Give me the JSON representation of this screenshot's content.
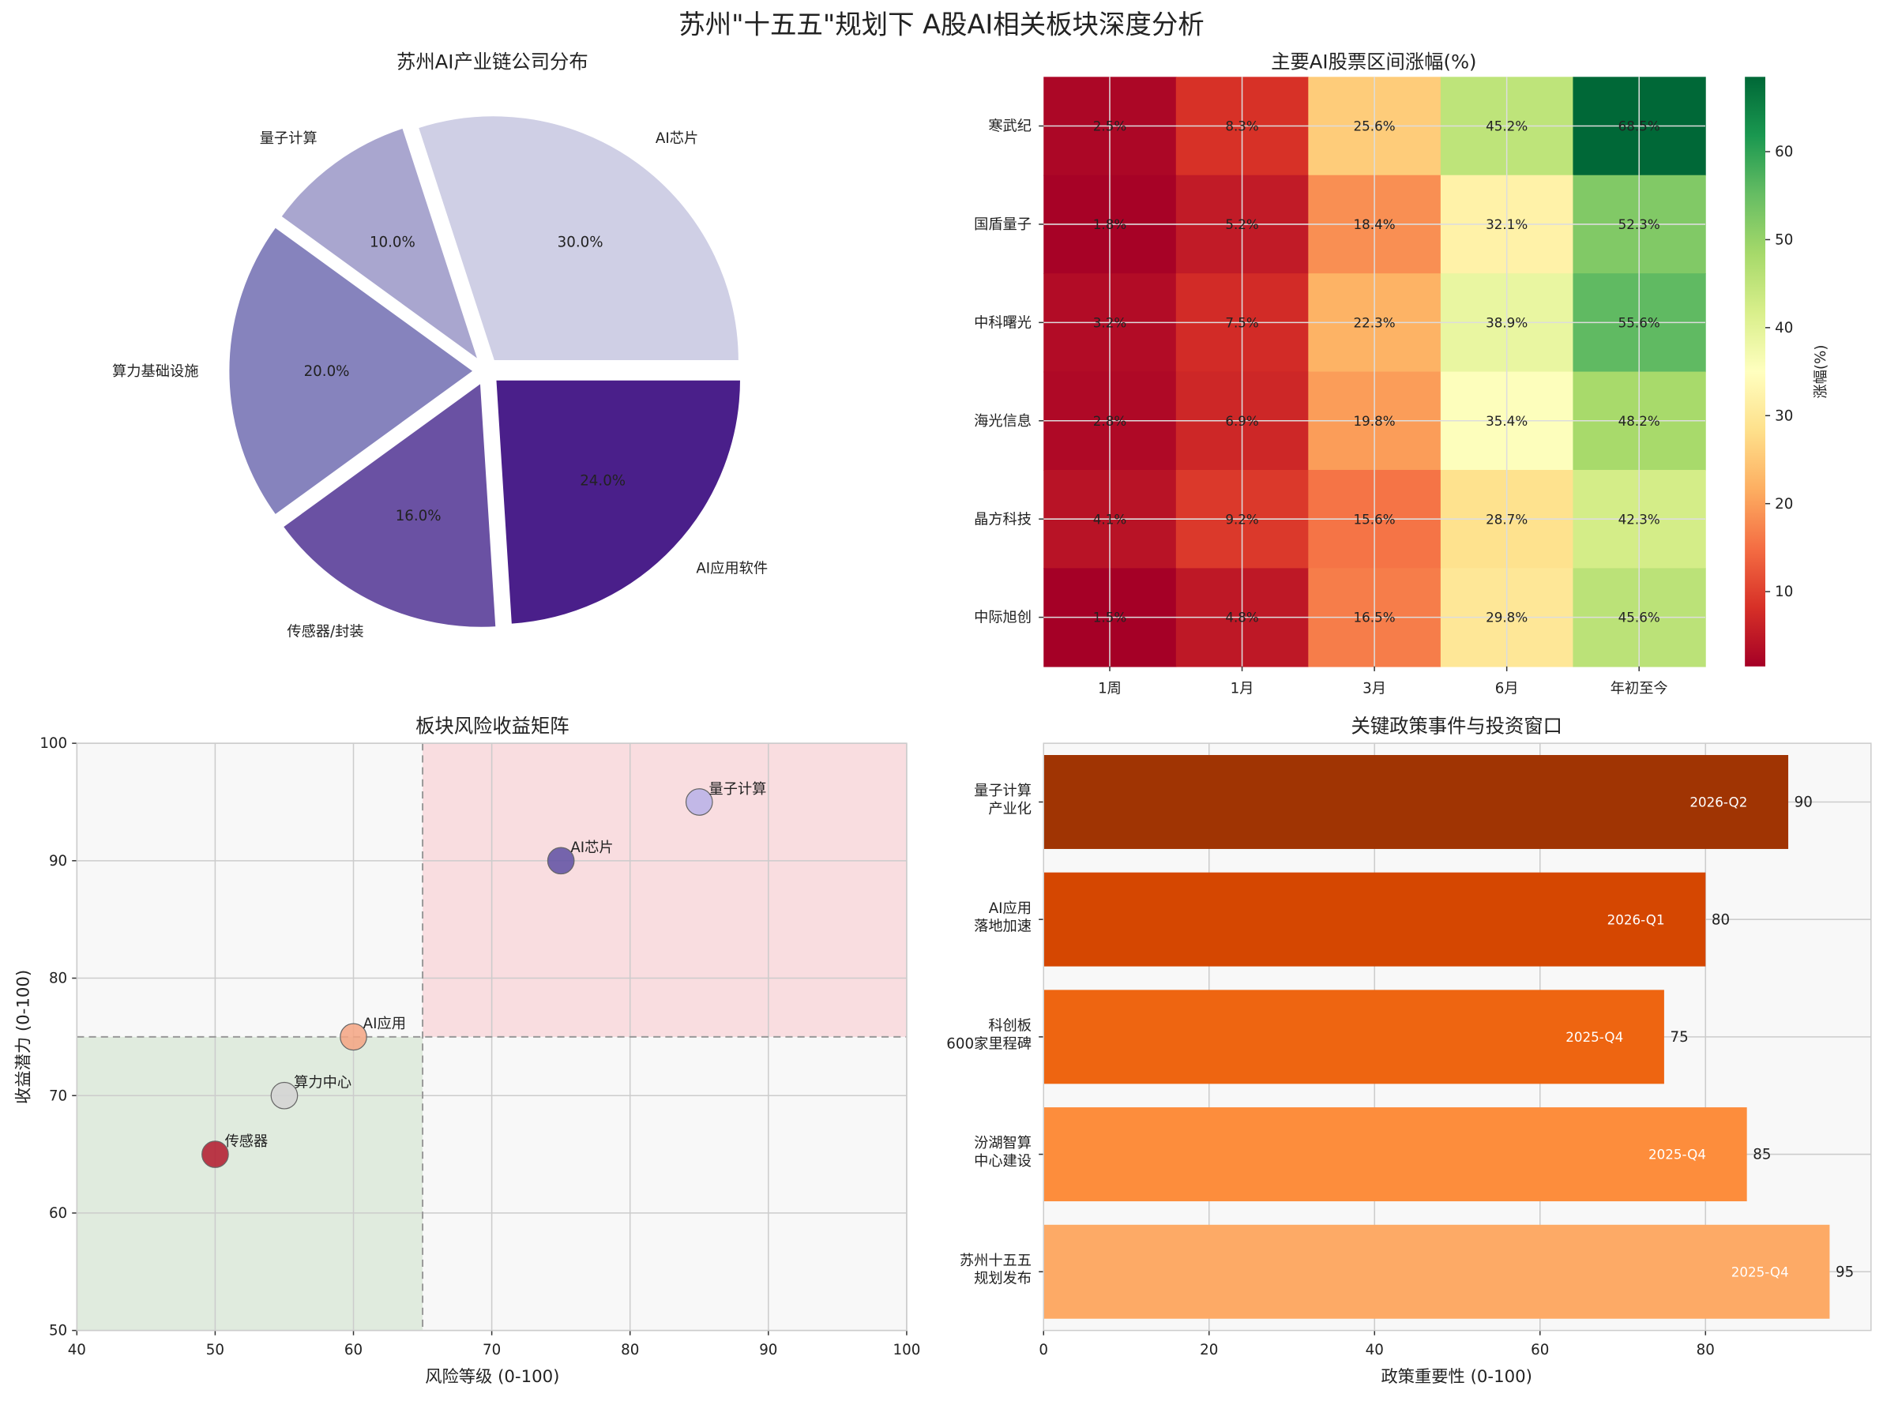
{
  "title": "苏州\"十五五\"规划下 A股AI相关板块深度分析",
  "chart_data": [
    {
      "type": "pie",
      "title": "苏州AI产业链公司分布",
      "labels": [
        "AI芯片",
        "量子计算",
        "算力基础设施",
        "传感器/封装",
        "AI应用软件"
      ],
      "values": [
        30.0,
        10.0,
        20.0,
        16.0,
        24.0
      ],
      "pct_labels": [
        "30.0%",
        "10.0%",
        "20.0%",
        "16.0%",
        "24.0%"
      ],
      "colors": [
        "#cfcfe5",
        "#a9a6cf",
        "#8683bd",
        "#6a51a3",
        "#4a1f8a"
      ],
      "exploded": true
    },
    {
      "type": "heatmap",
      "title": "主要AI股票区间涨幅(%)",
      "rows": [
        "寒武纪",
        "国盾量子",
        "中科曙光",
        "海光信息",
        "晶方科技",
        "中际旭创"
      ],
      "columns": [
        "1周",
        "1月",
        "3月",
        "6月",
        "年初至今"
      ],
      "values": [
        [
          2.5,
          8.3,
          25.6,
          45.2,
          68.5
        ],
        [
          1.8,
          5.2,
          18.4,
          32.1,
          52.3
        ],
        [
          3.2,
          7.5,
          22.3,
          38.9,
          55.6
        ],
        [
          2.8,
          6.9,
          19.8,
          35.4,
          48.2
        ],
        [
          4.1,
          9.2,
          15.6,
          28.7,
          42.3
        ],
        [
          1.5,
          4.8,
          16.5,
          29.8,
          45.6
        ]
      ],
      "colormap": "RdYlGn",
      "colorbar_label": "涨幅(%)",
      "colorbar_ticks": [
        10,
        20,
        30,
        40,
        50,
        60
      ],
      "colorbar_range": [
        1.5,
        68.5
      ]
    },
    {
      "type": "scatter",
      "title": "板块风险收益矩阵",
      "xlabel": "风险等级 (0-100)",
      "ylabel": "收益潜力 (0-100)",
      "xlim": [
        40,
        100
      ],
      "ylim": [
        50,
        100
      ],
      "xticks": [
        40,
        50,
        60,
        70,
        80,
        90,
        100
      ],
      "yticks": [
        50,
        60,
        70,
        80,
        90,
        100
      ],
      "grid": true,
      "threshold_x": 65,
      "threshold_y": 75,
      "points": [
        {
          "label": "传感器",
          "x": 50,
          "y": 65,
          "color": "#b2182b"
        },
        {
          "label": "算力中心",
          "x": 55,
          "y": 70,
          "color": "#d3d3d3"
        },
        {
          "label": "AI应用",
          "x": 60,
          "y": 75,
          "color": "#f4a582"
        },
        {
          "label": "AI芯片",
          "x": 75,
          "y": 90,
          "color": "#5e4fa2"
        },
        {
          "label": "量子计算",
          "x": 85,
          "y": 95,
          "color": "#b8b2e8"
        }
      ]
    },
    {
      "type": "bar",
      "orientation": "horizontal",
      "title": "关键政策事件与投资窗口",
      "xlabel": "政策重要性 (0-100)",
      "xlim": [
        0,
        100
      ],
      "xticks": [
        0,
        20,
        40,
        60,
        80
      ],
      "grid": true,
      "categories": [
        "苏州十五五\n规划发布",
        "汾湖智算\n中心建设",
        "科创板\n600家里程碑",
        "AI应用\n落地加速",
        "量子计算\n产业化"
      ],
      "values": [
        95,
        85,
        75,
        80,
        90
      ],
      "value_labels": [
        "95",
        "85",
        "75",
        "80",
        "90"
      ],
      "windows": [
        "2025-Q4",
        "2025-Q4",
        "2025-Q4",
        "2026-Q1",
        "2026-Q2"
      ],
      "colors": [
        "#fdaa66",
        "#fd8d3c",
        "#ee6511",
        "#d54701",
        "#a03403"
      ]
    }
  ]
}
